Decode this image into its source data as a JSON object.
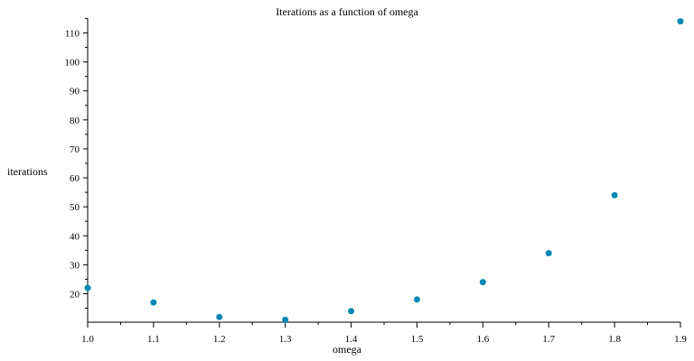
{
  "chart_data": {
    "type": "scatter",
    "title": "Iterations as a function of omega",
    "xlabel": "omega",
    "ylabel": "iterations",
    "x": [
      1.0,
      1.1,
      1.2,
      1.3,
      1.4,
      1.5,
      1.6,
      1.7,
      1.8,
      1.9
    ],
    "y": [
      22,
      17,
      12,
      11,
      14,
      18,
      24,
      34,
      54,
      114
    ],
    "xlim": [
      1.0,
      1.9
    ],
    "ylim": [
      10,
      115
    ],
    "x_ticks": [
      "1.0",
      "1.1",
      "1.2",
      "1.3",
      "1.4",
      "1.5",
      "1.6",
      "1.7",
      "1.8",
      "1.9"
    ],
    "y_ticks": [
      "20",
      "30",
      "40",
      "50",
      "60",
      "70",
      "80",
      "90",
      "100",
      "110"
    ],
    "grid": false,
    "legend": "none",
    "point_color": "#0087B4"
  }
}
